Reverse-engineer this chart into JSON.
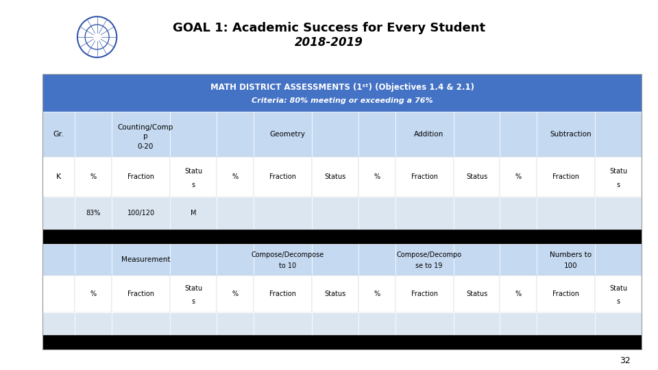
{
  "title_line1": "GOAL 1: Academic Success for Every Student",
  "title_line2": "2018-2019",
  "header_line1": "MATH DISTRICT ASSESSMENTS (1ˢᵗ) (Objectives 1.4 & 2.1)",
  "header_line2": "Criteria: 80% meeting or exceeding a 76%",
  "header_bg": "#4472C4",
  "header_text_color": "#FFFFFF",
  "white": "#FFFFFF",
  "black": "#000000",
  "dark_blue_header": "#4472C4",
  "row_header_bg": "#C5D9F1",
  "data_row_bg": "#DCE6F1",
  "page_number": "32",
  "gr_label": "Gr.",
  "k_label": "K",
  "data_83": "83%",
  "data_100_120": "100/120",
  "data_m": "M",
  "section1_labels": [
    "Counting/Comp",
    "p",
    "0-20"
  ],
  "section2_label_geo": "Geometry",
  "section2_label_add": "Addition",
  "section2_label_sub": "Subtraction",
  "s2_measurement": "Measurement",
  "s2_compose10_1": "Compose/Decompose",
  "s2_compose10_2": "to 10",
  "s2_compose19_1": "Compose/Decompo",
  "s2_compose19_2": "se to 19",
  "s2_numbers_1": "Numbers to",
  "s2_numbers_2": "100"
}
